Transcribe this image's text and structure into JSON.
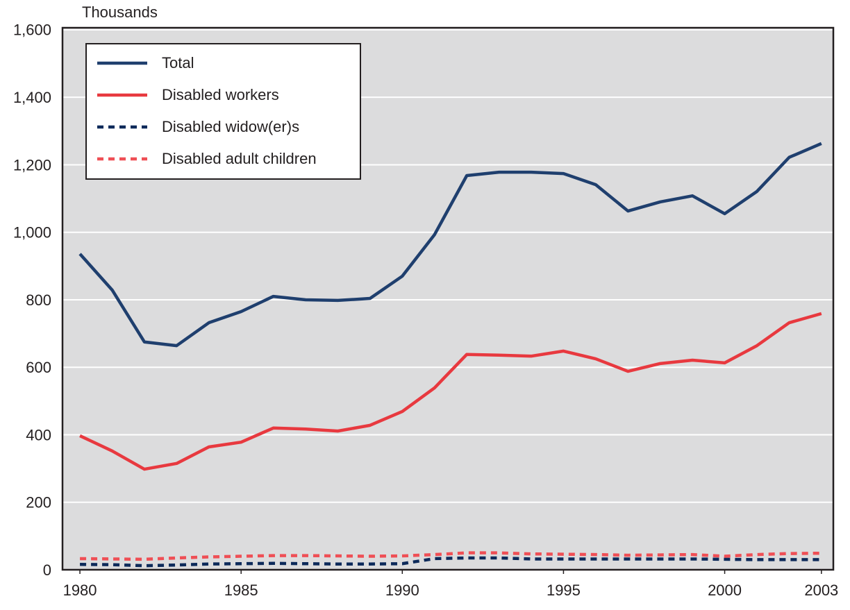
{
  "chart_data": {
    "type": "line",
    "y_label": "Thousands",
    "x": [
      1980,
      1981,
      1982,
      1983,
      1984,
      1985,
      1986,
      1987,
      1988,
      1989,
      1990,
      1991,
      1992,
      1993,
      1994,
      1995,
      1996,
      1997,
      1998,
      1999,
      2000,
      2001,
      2002,
      2003
    ],
    "series": [
      {
        "name": "Total",
        "color": "#1f3f6e",
        "dashed": false,
        "values": [
          936,
          829,
          675,
          664,
          732,
          765,
          810,
          800,
          798,
          804,
          870,
          993,
          1168,
          1178,
          1178,
          1174,
          1141,
          1063,
          1090,
          1108,
          1055,
          1121,
          1222,
          1263
        ]
      },
      {
        "name": "Disabled workers",
        "color": "#e8393f",
        "dashed": false,
        "values": [
          397,
          352,
          298,
          315,
          364,
          378,
          420,
          417,
          411,
          428,
          469,
          539,
          638,
          636,
          633,
          648,
          625,
          588,
          611,
          621,
          613,
          664,
          732,
          759
        ]
      },
      {
        "name": "Disabled widow(er)s",
        "color": "#0d2a5a",
        "dashed": true,
        "values": [
          16,
          15,
          12,
          14,
          17,
          18,
          19,
          18,
          17,
          17,
          18,
          33,
          35,
          35,
          32,
          32,
          32,
          32,
          32,
          32,
          31,
          30,
          30,
          30
        ]
      },
      {
        "name": "Disabled adult children",
        "color": "#ef4f55",
        "dashed": true,
        "values": [
          33,
          32,
          31,
          35,
          38,
          40,
          42,
          42,
          41,
          40,
          41,
          45,
          50,
          50,
          47,
          46,
          45,
          43,
          44,
          45,
          40,
          45,
          48,
          49
        ]
      }
    ],
    "xlim": [
      1979.46,
      2003.37
    ],
    "xticks": [
      1980,
      1985,
      1990,
      1995,
      2000,
      2003
    ],
    "ylim": [
      0,
      1606
    ],
    "yticks": [
      0,
      200,
      400,
      600,
      800,
      {
        "value": 1000,
        "label": "1,000"
      },
      {
        "value": 1200,
        "label": "1,200"
      },
      {
        "value": 1400,
        "label": "1,400"
      },
      {
        "value": 1600,
        "label": "1,600"
      }
    ],
    "grid": true,
    "legend": "upper left",
    "background": "#dcdcdd"
  }
}
